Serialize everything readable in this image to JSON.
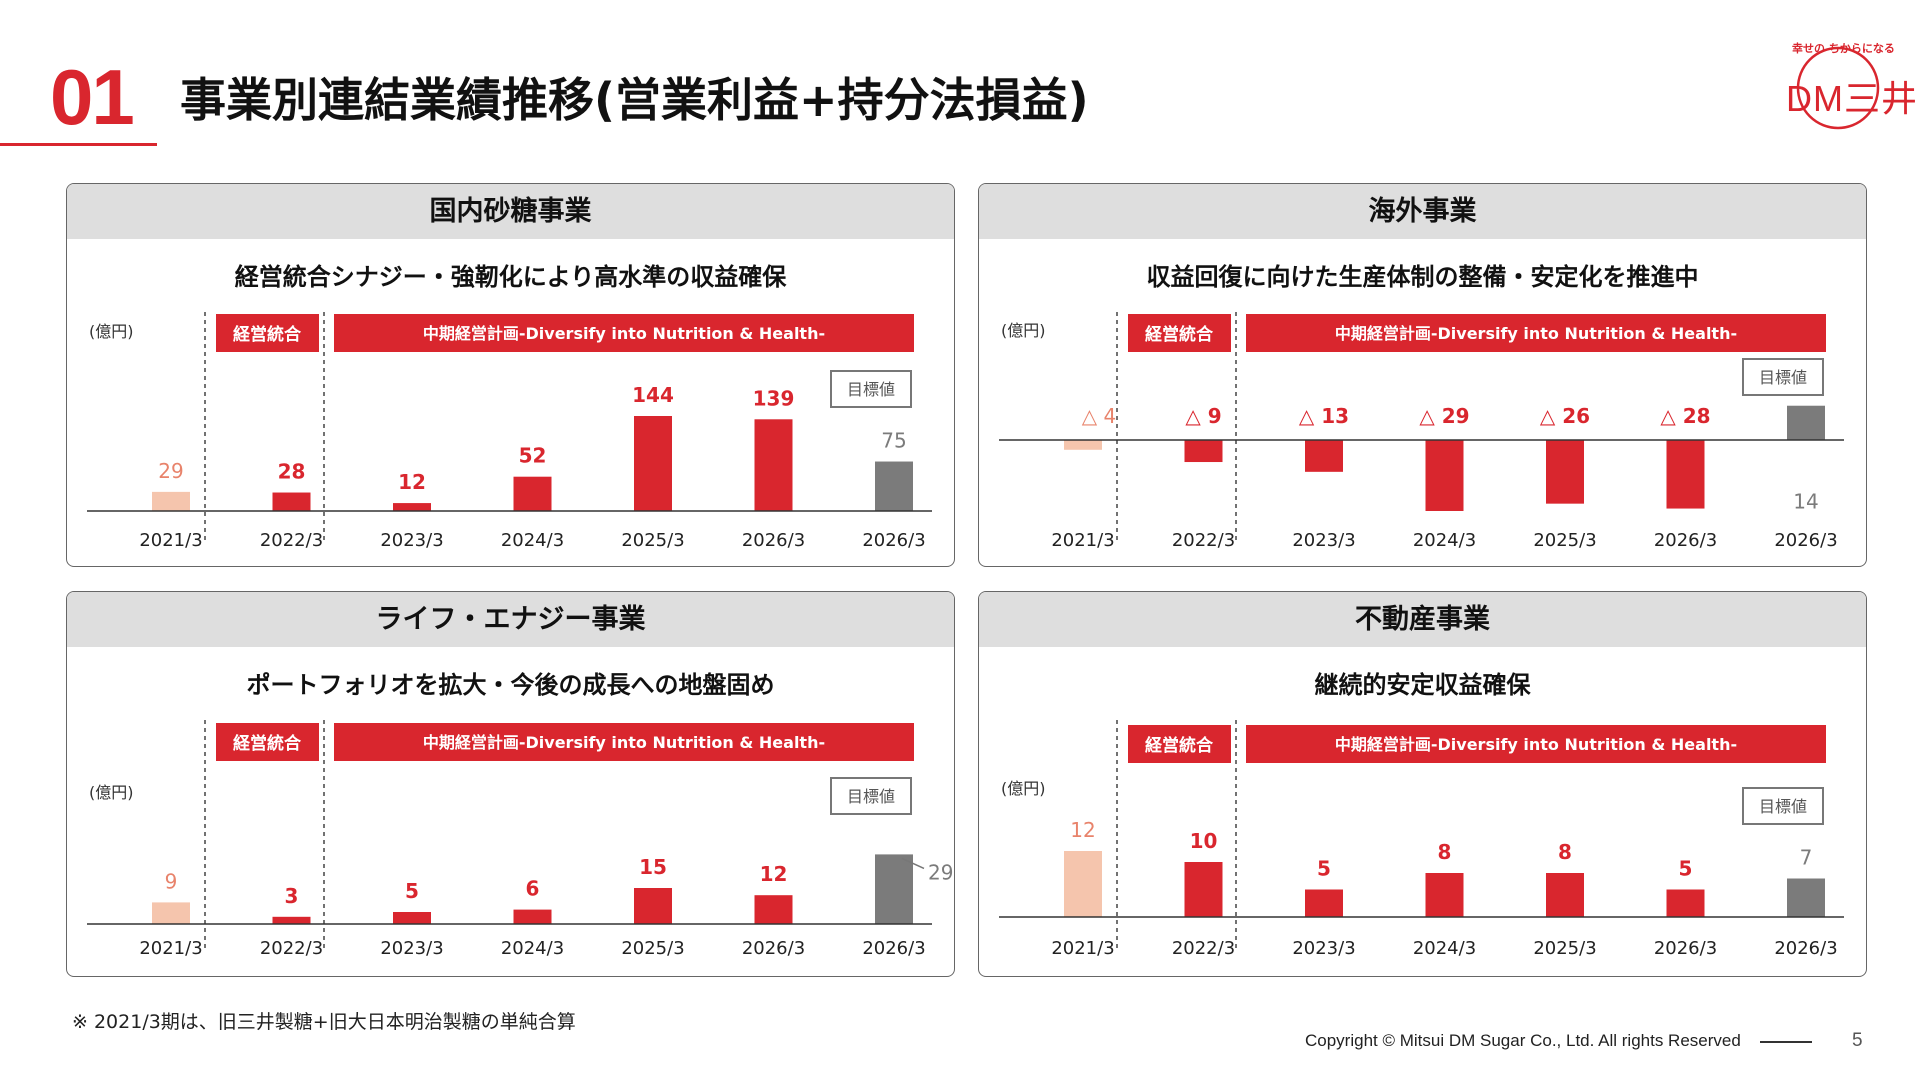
{
  "header": {
    "number": "01",
    "title": "事業別連結業績推移(営業利益+持分法損益)"
  },
  "logo": {
    "tagline": "幸せの ちからになる",
    "text": "DM三井"
  },
  "labels": {
    "merger": "経営統合",
    "plan": "中期経営計画-Diversify into Nutrition & Health-",
    "target": "目標値",
    "unit": "(億円)"
  },
  "colors": {
    "brand_red": "#d9262e",
    "first_bar": "#f5c5ad",
    "first_label": "#e8836b",
    "target_bar": "#7b7b7b",
    "target_label": "#7b7b7b"
  },
  "chart_data": [
    {
      "type": "bar",
      "title": "国内砂糖事業",
      "subtitle": "経営統合シナジー・強靭化により高水準の収益確保",
      "ylabel": "(億円)",
      "categories": [
        "2021/3",
        "2022/3",
        "2023/3",
        "2024/3",
        "2025/3",
        "2026/3",
        "2026/3"
      ],
      "values": [
        29,
        28,
        12,
        52,
        144,
        139,
        75
      ],
      "value_labels": [
        "29",
        "28",
        "12",
        "52",
        "144",
        "139",
        "75"
      ],
      "target_index": 6
    },
    {
      "type": "bar",
      "title": "海外事業",
      "subtitle": "収益回復に向けた生産体制の整備・安定化を推進中",
      "ylabel": "(億円)",
      "categories": [
        "2021/3",
        "2022/3",
        "2023/3",
        "2024/3",
        "2025/3",
        "2026/3",
        "2026/3"
      ],
      "values": [
        -4,
        -9,
        -13,
        -29,
        -26,
        -28,
        14
      ],
      "value_labels": [
        "△ 4",
        "△ 9",
        "△ 13",
        "△ 29",
        "△ 26",
        "△ 28",
        "14"
      ],
      "target_index": 6
    },
    {
      "type": "bar",
      "title": "ライフ・エナジー事業",
      "subtitle": "ポートフォリオを拡大・今後の成長への地盤固め",
      "ylabel": "(億円)",
      "categories": [
        "2021/3",
        "2022/3",
        "2023/3",
        "2024/3",
        "2025/3",
        "2026/3",
        "2026/3"
      ],
      "values": [
        9,
        3,
        5,
        6,
        15,
        12,
        29
      ],
      "value_labels": [
        "9",
        "3",
        "5",
        "6",
        "15",
        "12",
        "29"
      ],
      "target_index": 6
    },
    {
      "type": "bar",
      "title": "不動産事業",
      "subtitle": "継続的安定収益確保",
      "ylabel": "(億円)",
      "categories": [
        "2021/3",
        "2022/3",
        "2023/3",
        "2024/3",
        "2025/3",
        "2026/3",
        "2026/3"
      ],
      "values": [
        12,
        10,
        5,
        8,
        8,
        5,
        7
      ],
      "value_labels": [
        "12",
        "10",
        "5",
        "8",
        "8",
        "5",
        "7"
      ],
      "target_index": 6
    }
  ],
  "footer": {
    "note": "※ 2021/3期は、旧三井製糖+旧大日本明治製糖の単純合算",
    "copyright": "Copyright © Mitsui DM Sugar Co., Ltd. All rights Reserved",
    "page": "5"
  }
}
